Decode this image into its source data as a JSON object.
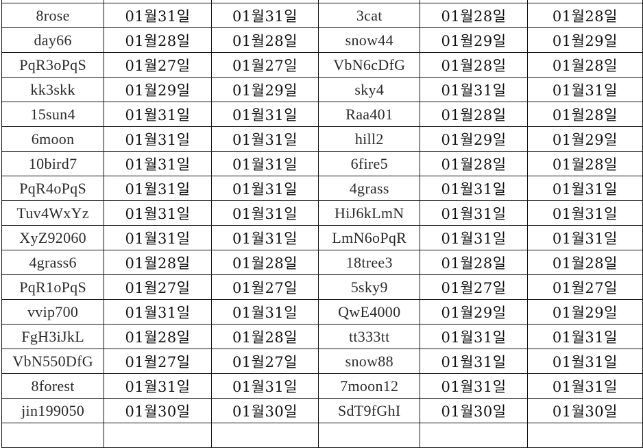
{
  "rows": [
    [
      "",
      "",
      "",
      "",
      "",
      ""
    ],
    [
      "8rose",
      "01월31일",
      "01월31일",
      "3cat",
      "01월28일",
      "01월28일"
    ],
    [
      "day66",
      "01월28일",
      "01월28일",
      "snow44",
      "01월29일",
      "01월29일"
    ],
    [
      "PqR3oPqS",
      "01월27일",
      "01월27일",
      "VbN6cDfG",
      "01월28일",
      "01월28일"
    ],
    [
      "kk3skk",
      "01월29일",
      "01월29일",
      "sky4",
      "01월31일",
      "01월31일"
    ],
    [
      "15sun4",
      "01월31일",
      "01월31일",
      "Raa401",
      "01월28일",
      "01월28일"
    ],
    [
      "6moon",
      "01월31일",
      "01월31일",
      "hill2",
      "01월29일",
      "01월29일"
    ],
    [
      "10bird7",
      "01월31일",
      "01월31일",
      "6fire5",
      "01월28일",
      "01월28일"
    ],
    [
      "PqR4oPqS",
      "01월31일",
      "01월31일",
      "4grass",
      "01월31일",
      "01월31일"
    ],
    [
      "Tuv4WxYz",
      "01월31일",
      "01월31일",
      "HiJ6kLmN",
      "01월31일",
      "01월31일"
    ],
    [
      "XyZ92060",
      "01월31일",
      "01월31일",
      "LmN6oPqR",
      "01월31일",
      "01월31일"
    ],
    [
      "4grass6",
      "01월28일",
      "01월28일",
      "18tree3",
      "01월28일",
      "01월28일"
    ],
    [
      "PqR1oPqS",
      "01월27일",
      "01월27일",
      "5sky9",
      "01월27일",
      "01월27일"
    ],
    [
      "vvip700",
      "01월31일",
      "01월31일",
      "QwE4000",
      "01월29일",
      "01월29일"
    ],
    [
      "FgH3iJkL",
      "01월28일",
      "01월28일",
      "tt333tt",
      "01월31일",
      "01월31일"
    ],
    [
      "VbN550DfG",
      "01월27일",
      "01월27일",
      "snow88",
      "01월31일",
      "01월31일"
    ],
    [
      "8forest",
      "01월31일",
      "01월31일",
      "7moon12",
      "01월31일",
      "01월31일"
    ],
    [
      "jin199050",
      "01월30일",
      "01월30일",
      "SdT9fGhI",
      "01월30일",
      "01월30일"
    ],
    [
      "",
      "",
      "",
      "",
      "",
      ""
    ]
  ]
}
